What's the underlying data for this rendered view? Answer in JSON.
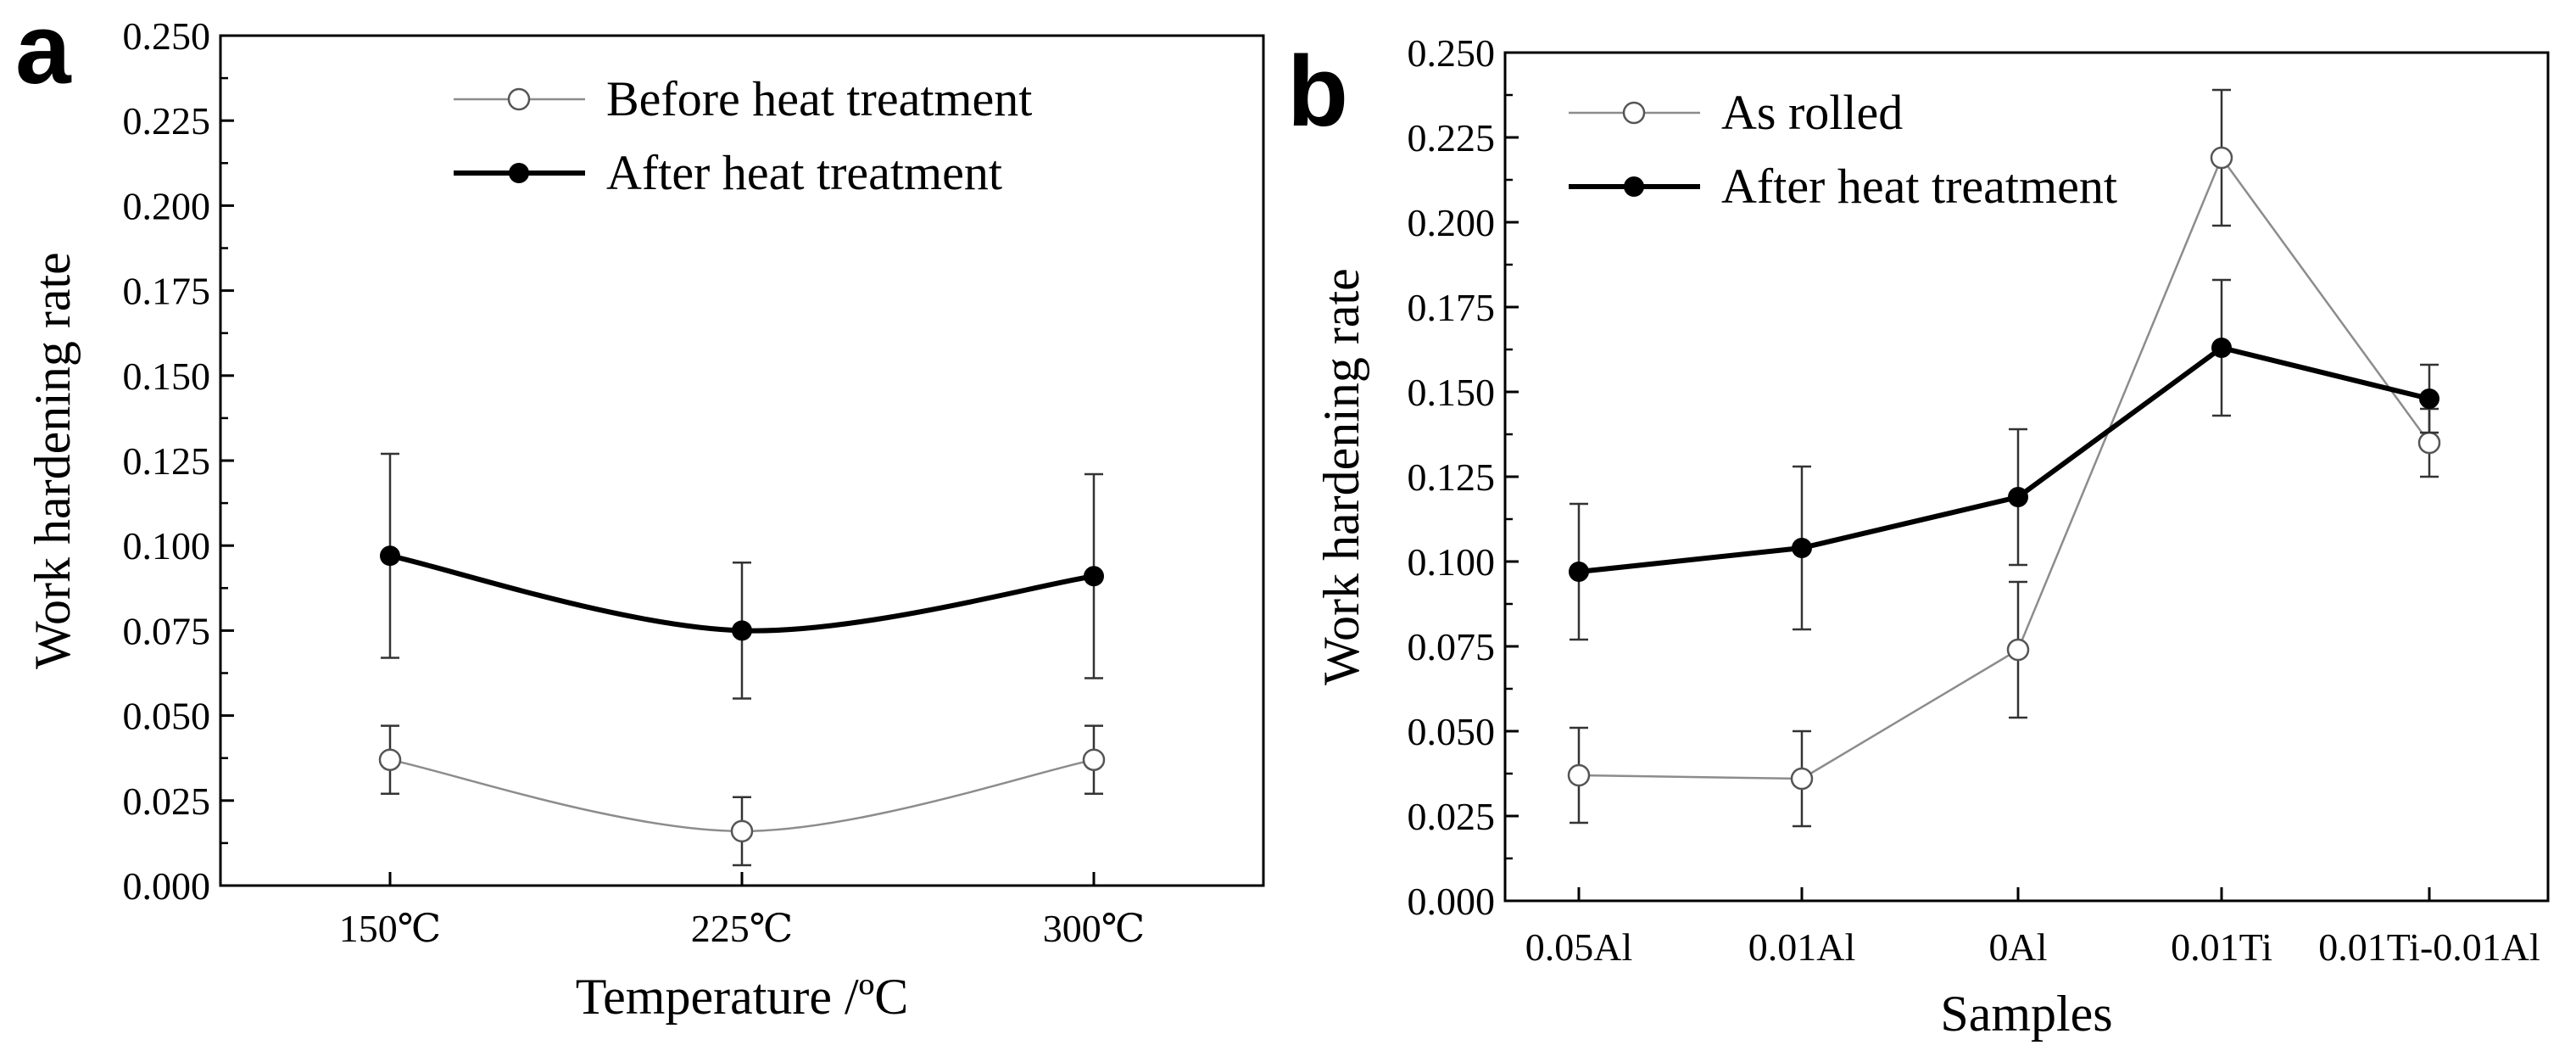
{
  "chart_data": [
    {
      "panel_label": "a",
      "type": "line",
      "xlabel": "Temperature /ºC",
      "ylabel": "Work hardening rate",
      "ylim": [
        0,
        0.25
      ],
      "yticks": [
        "0.000",
        "0.025",
        "0.050",
        "0.075",
        "0.100",
        "0.125",
        "0.150",
        "0.175",
        "0.200",
        "0.225",
        "0.250"
      ],
      "categories": [
        "150℃",
        "225℃",
        "300℃"
      ],
      "legend_position": "top-right",
      "series": [
        {
          "name": "Before heat treatment",
          "marker": "open-circle",
          "line": "thin-gray",
          "values": [
            0.037,
            0.016,
            0.037
          ],
          "errors": [
            0.01,
            0.01,
            0.01
          ]
        },
        {
          "name": "After heat treatment",
          "marker": "filled-circle",
          "line": "thick-black",
          "values": [
            0.097,
            0.075,
            0.091
          ],
          "errors": [
            0.03,
            0.02,
            0.03
          ]
        }
      ]
    },
    {
      "panel_label": "b",
      "type": "line",
      "xlabel": "Samples",
      "ylabel": "Work hardening rate",
      "ylim": [
        0,
        0.25
      ],
      "yticks": [
        "0.000",
        "0.025",
        "0.050",
        "0.075",
        "0.100",
        "0.125",
        "0.150",
        "0.175",
        "0.200",
        "0.225",
        "0.250"
      ],
      "categories": [
        "0.05Al",
        "0.01Al",
        "0Al",
        "0.01Ti",
        "0.01Ti-0.01Al"
      ],
      "legend_position": "top-left",
      "series": [
        {
          "name": "As rolled",
          "marker": "open-circle",
          "line": "thin-gray",
          "values": [
            0.037,
            0.036,
            0.074,
            0.219,
            0.135
          ],
          "errors": [
            0.014,
            0.014,
            0.02,
            0.02,
            0.01
          ]
        },
        {
          "name": "After heat treatment",
          "marker": "filled-circle",
          "line": "thick-black",
          "values": [
            0.097,
            0.104,
            0.119,
            0.163,
            0.148
          ],
          "errors": [
            0.02,
            0.024,
            0.02,
            0.02,
            0.01
          ]
        }
      ]
    }
  ]
}
